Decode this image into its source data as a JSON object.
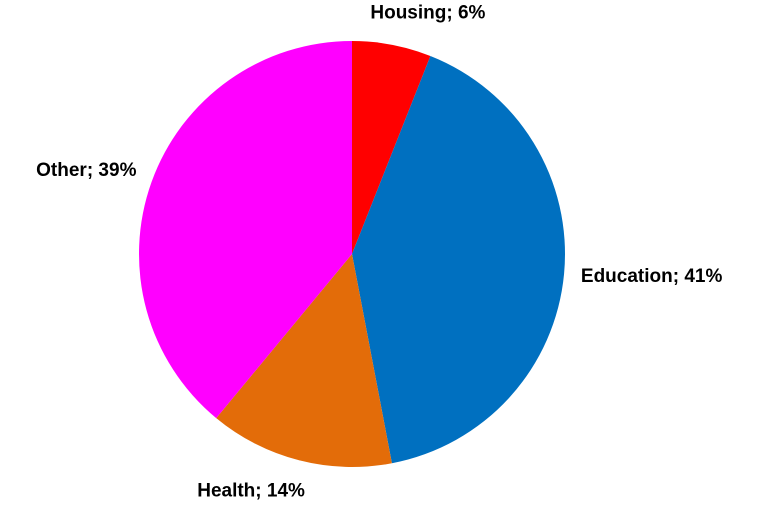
{
  "chart_data": {
    "type": "pie",
    "values": [
      6,
      41,
      14,
      39
    ],
    "value_labels": [
      "Housing; 6%",
      "Education; 41%",
      "Health; 14%",
      "Other; 39%"
    ],
    "colors": [
      "#ff0000",
      "#0070c0",
      "#e36c09",
      "#ff00ff"
    ]
  }
}
